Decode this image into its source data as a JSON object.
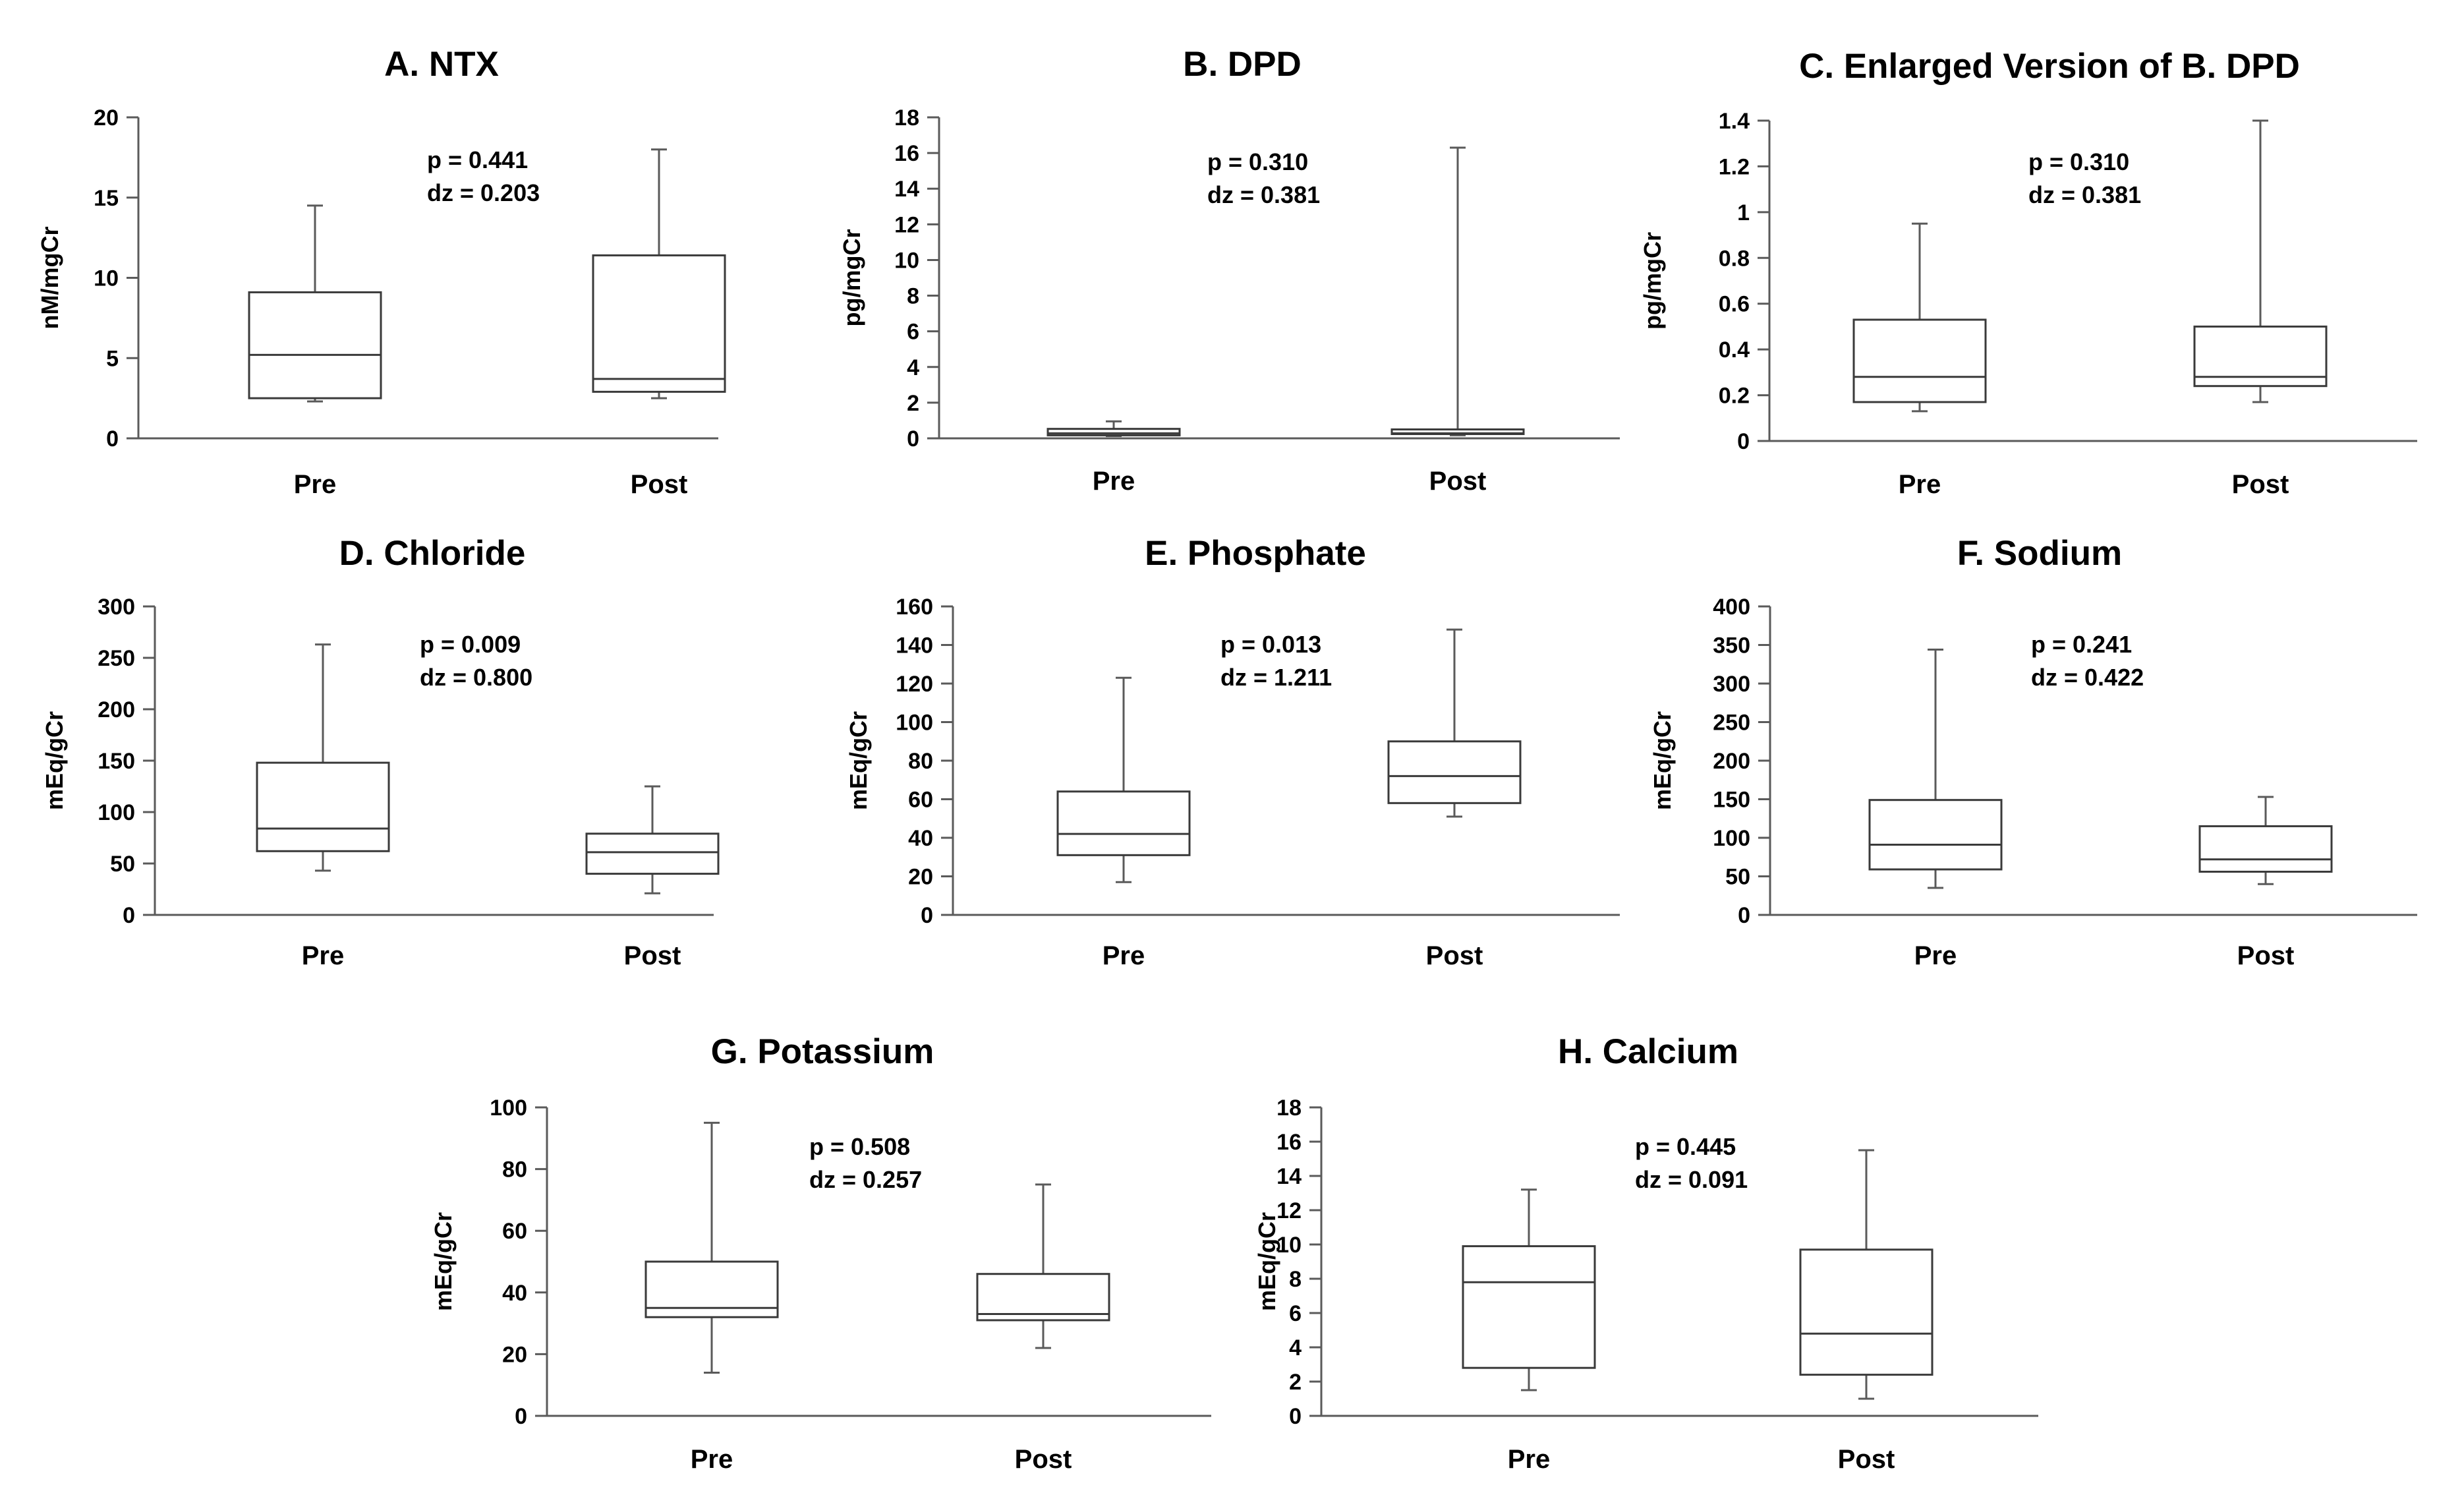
{
  "chart_data": [
    {
      "id": "A",
      "type": "box",
      "title": "A. NTX",
      "ylabel": "nM/mgCr",
      "ylim": [
        0,
        20
      ],
      "yticks": [
        0,
        5,
        10,
        15,
        20
      ],
      "categories": [
        "Pre",
        "Post"
      ],
      "boxes": [
        {
          "category": "Pre",
          "min": 2.3,
          "q1": 2.5,
          "median": 5.2,
          "q3": 9.1,
          "max": 14.5
        },
        {
          "category": "Post",
          "min": 2.5,
          "q1": 2.9,
          "median": 3.7,
          "q3": 11.4,
          "max": 18.0
        }
      ],
      "annotation": {
        "p": "p = 0.441",
        "dz": "dz = 0.203"
      }
    },
    {
      "id": "B",
      "type": "box",
      "title": "B. DPD",
      "ylabel": "pg/mgCr",
      "ylim": [
        0,
        18
      ],
      "yticks": [
        0,
        2,
        4,
        6,
        8,
        10,
        12,
        14,
        16,
        18
      ],
      "categories": [
        "Pre",
        "Post"
      ],
      "boxes": [
        {
          "category": "Pre",
          "min": 0.13,
          "q1": 0.17,
          "median": 0.28,
          "q3": 0.53,
          "max": 0.95
        },
        {
          "category": "Post",
          "min": 0.17,
          "q1": 0.24,
          "median": 0.28,
          "q3": 0.5,
          "max": 16.3
        }
      ],
      "annotation": {
        "p": "p = 0.310",
        "dz": "dz = 0.381"
      }
    },
    {
      "id": "C",
      "type": "box",
      "title": "C. Enlarged Version of B. DPD",
      "ylabel": "pg/mgCr",
      "ylim": [
        0,
        1.4
      ],
      "yticks": [
        0,
        0.2,
        0.4,
        0.6,
        0.8,
        1,
        1.2,
        1.4
      ],
      "categories": [
        "Pre",
        "Post"
      ],
      "boxes": [
        {
          "category": "Pre",
          "min": 0.13,
          "q1": 0.17,
          "median": 0.28,
          "q3": 0.53,
          "max": 0.95
        },
        {
          "category": "Post",
          "min": 0.17,
          "q1": 0.24,
          "median": 0.28,
          "q3": 0.5,
          "max": 1.4
        }
      ],
      "annotation": {
        "p": "p = 0.310",
        "dz": "dz = 0.381"
      }
    },
    {
      "id": "D",
      "type": "box",
      "title": "D. Chloride",
      "ylabel": "mEq/gCr",
      "ylim": [
        0,
        300
      ],
      "yticks": [
        0,
        50,
        100,
        150,
        200,
        250,
        300
      ],
      "categories": [
        "Pre",
        "Post"
      ],
      "boxes": [
        {
          "category": "Pre",
          "min": 43,
          "q1": 62,
          "median": 84,
          "q3": 148,
          "max": 263
        },
        {
          "category": "Post",
          "min": 21,
          "q1": 40,
          "median": 61,
          "q3": 79,
          "max": 125
        }
      ],
      "annotation": {
        "p": "p = 0.009",
        "dz": "dz = 0.800"
      }
    },
    {
      "id": "E",
      "type": "box",
      "title": "E. Phosphate",
      "ylabel": "mEq/gCr",
      "ylim": [
        0,
        160
      ],
      "yticks": [
        0,
        20,
        40,
        60,
        80,
        100,
        120,
        140,
        160
      ],
      "categories": [
        "Pre",
        "Post"
      ],
      "boxes": [
        {
          "category": "Pre",
          "min": 17,
          "q1": 31,
          "median": 42,
          "q3": 64,
          "max": 123
        },
        {
          "category": "Post",
          "min": 51,
          "q1": 58,
          "median": 72,
          "q3": 90,
          "max": 148
        }
      ],
      "annotation": {
        "p": "p = 0.013",
        "dz": "dz = 1.211"
      }
    },
    {
      "id": "F",
      "type": "box",
      "title": "F. Sodium",
      "ylabel": "mEq/gCr",
      "ylim": [
        0,
        400
      ],
      "yticks": [
        0,
        50,
        100,
        150,
        200,
        250,
        300,
        350,
        400
      ],
      "categories": [
        "Pre",
        "Post"
      ],
      "boxes": [
        {
          "category": "Pre",
          "min": 35,
          "q1": 59,
          "median": 91,
          "q3": 149,
          "max": 344
        },
        {
          "category": "Post",
          "min": 40,
          "q1": 56,
          "median": 72,
          "q3": 115,
          "max": 153
        }
      ],
      "annotation": {
        "p": "p = 0.241",
        "dz": "dz = 0.422"
      }
    },
    {
      "id": "G",
      "type": "box",
      "title": "G. Potassium",
      "ylabel": "mEq/gCr",
      "ylim": [
        0,
        100
      ],
      "yticks": [
        0,
        20,
        40,
        60,
        80,
        100
      ],
      "categories": [
        "Pre",
        "Post"
      ],
      "boxes": [
        {
          "category": "Pre",
          "min": 14,
          "q1": 32,
          "median": 35,
          "q3": 50,
          "max": 95
        },
        {
          "category": "Post",
          "min": 22,
          "q1": 31,
          "median": 33,
          "q3": 46,
          "max": 75
        }
      ],
      "annotation": {
        "p": "p = 0.508",
        "dz": "dz = 0.257"
      }
    },
    {
      "id": "H",
      "type": "box",
      "title": "H. Calcium",
      "ylabel": "mEq/gCr",
      "ylim": [
        0,
        18
      ],
      "yticks": [
        0,
        2,
        4,
        6,
        8,
        10,
        12,
        14,
        16,
        18
      ],
      "categories": [
        "Pre",
        "Post"
      ],
      "boxes": [
        {
          "category": "Pre",
          "min": 1.5,
          "q1": 2.8,
          "median": 7.8,
          "q3": 9.9,
          "max": 13.2
        },
        {
          "category": "Post",
          "min": 1.0,
          "q1": 2.4,
          "median": 4.8,
          "q3": 9.7,
          "max": 15.5
        }
      ],
      "annotation": {
        "p": "p = 0.445",
        "dz": "dz = 0.091"
      }
    }
  ],
  "colors": {
    "axis": "#5a5a5a",
    "box_stroke": "#3a3a3a",
    "box_fill": "#ffffff",
    "text": "#000000",
    "background": "#ffffff"
  }
}
